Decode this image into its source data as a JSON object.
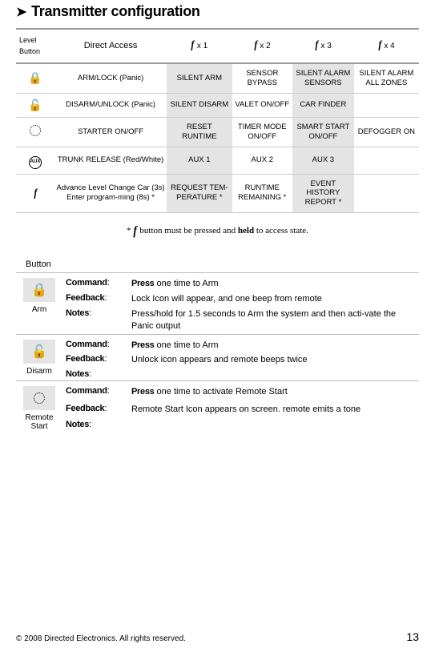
{
  "heading": "Transmitter configuration",
  "configTable": {
    "header": {
      "levelButton": {
        "top": "Level",
        "bottom": "Button"
      },
      "direct": "Direct Access",
      "x1": "x 1",
      "x2": "x 2",
      "x3": "x 3",
      "x4": "x 4"
    },
    "rows": [
      {
        "icon": "lock",
        "c1": "ARM/LOCK (Panic)",
        "c2": "SILENT ARM",
        "c3": "SENSOR BYPASS",
        "c4": "SILENT ALARM SENSORS",
        "c5": "SILENT ALARM ALL ZONES"
      },
      {
        "icon": "unlock",
        "c1": "DISARM/UNLOCK (Panic)",
        "c2": "SILENT DISARM",
        "c3": "VALET ON/OFF",
        "c4": "CAR FINDER",
        "c5": ""
      },
      {
        "icon": "spinner",
        "c1": "STARTER ON/OFF",
        "c2": "RESET RUNTIME",
        "c3": "TIMER MODE ON/OFF",
        "c4": "SMART START ON/OFF",
        "c5": "DEFOGGER ON"
      },
      {
        "icon": "aux",
        "c1": "TRUNK RELEASE (Red/White)",
        "c2": "AUX 1",
        "c3": "AUX 2",
        "c4": "AUX 3",
        "c5": ""
      },
      {
        "icon": "f",
        "c1": "Advance Level Change Car (3s) Enter program-ming (8s) *",
        "c2": "REQUEST TEM-PERATURE  *",
        "c3": "RUNTIME REMAINING *",
        "c4": "EVENT HISTORY REPORT *",
        "c5": ""
      }
    ]
  },
  "footnote": {
    "pre": "* ",
    "mid": " button must be pressed and ",
    "bold": "held",
    "post": " to access state."
  },
  "buttonLabel": "Button",
  "details": [
    {
      "icon": "lock",
      "name": "Arm",
      "rows": [
        {
          "label": "Command",
          "boldPart": "Press",
          "rest": " one time to Arm"
        },
        {
          "label": "Feedback",
          "boldPart": "",
          "rest": "Lock Icon will appear, and one beep from remote"
        },
        {
          "label": "Notes",
          "boldPart": "",
          "rest": "Press/hold for 1.5 seconds to Arm the system and then acti-vate the Panic output"
        }
      ]
    },
    {
      "icon": "unlock",
      "name": "Disarm",
      "rows": [
        {
          "label": "Command",
          "boldPart": "Press",
          "rest": " one time to Arm"
        },
        {
          "label": "Feedback",
          "boldPart": "",
          "rest": "Unlock icon appears and remote beeps twice"
        },
        {
          "label": "Notes",
          "boldPart": "",
          "rest": ""
        }
      ]
    },
    {
      "icon": "spinner",
      "name": "Remote Start",
      "rows": [
        {
          "label": "Command",
          "boldPart": "Press",
          "rest": " one time to activate Remote Start"
        },
        {
          "label": "Feedback",
          "boldPart": "",
          "rest": "Remote Start Icon appears on screen. remote emits a tone"
        },
        {
          "label": "Notes",
          "boldPart": "",
          "rest": ""
        }
      ]
    }
  ],
  "footer": {
    "copyright": "© 2008 Directed Electronics. All rights reserved.",
    "page": "13"
  }
}
